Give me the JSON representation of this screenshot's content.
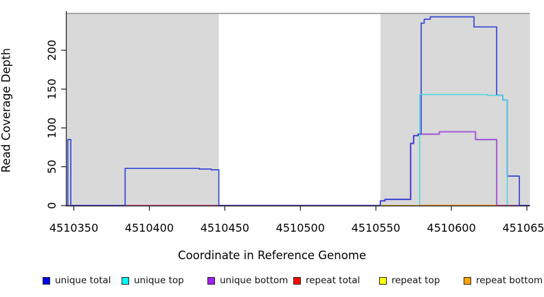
{
  "figure": {
    "background": "#ffffff",
    "text_color": "#000000"
  },
  "x_axis": {
    "label": "Coordinate in Reference Genome",
    "range": [
      4510345,
      4510652
    ],
    "ticks": [
      4510350,
      4510400,
      4510450,
      4510500,
      4510550,
      4510600,
      4510650
    ],
    "tick_labels": [
      "4510350",
      "4510400",
      "4510450",
      "4510500",
      "4510550",
      "4510600",
      "4510650"
    ]
  },
  "y_axis": {
    "label": "Read Coverage Depth",
    "range": [
      0,
      247
    ],
    "ticks": [
      0,
      50,
      100,
      150,
      200
    ],
    "tick_labels": [
      "0",
      "50",
      "100",
      "150",
      "200"
    ]
  },
  "repeat_regions": {
    "color": "#d9d9d9",
    "intervals": [
      [
        4510345,
        4510446
      ],
      [
        4510553,
        4510652
      ]
    ]
  },
  "frame": {
    "top_border_color": "#8e8e8e",
    "axis_color": "#1a1a1a"
  },
  "chart_data": {
    "type": "line-step",
    "xlabel": "Coordinate in Reference Genome",
    "ylabel": "Read Coverage Depth",
    "xlim": [
      4510345,
      4510652
    ],
    "ylim": [
      0,
      247
    ],
    "grid": false,
    "legend_position": "bottom",
    "series": [
      {
        "name": "unique bottom",
        "color": "#a961d6",
        "width": 2.2,
        "segments": [
          [
            [
              4510345,
              0
            ],
            [
              4510553,
              6
            ],
            [
              4510556,
              8
            ],
            [
              4510573,
              80
            ],
            [
              4510575,
              90
            ],
            [
              4510578,
              92
            ],
            [
              4510592,
              95
            ],
            [
              4510616,
              85
            ],
            [
              4510630,
              0
            ],
            [
              4510652,
              0
            ]
          ]
        ]
      },
      {
        "name": "unique total",
        "color": "#3546d4",
        "width": 1.7,
        "segments": [
          [
            [
              4510345,
              0
            ],
            [
              4510346,
              85
            ],
            [
              4510348,
              0
            ],
            [
              4510384,
              48
            ],
            [
              4510433,
              47
            ],
            [
              4510441,
              46
            ],
            [
              4510446,
              0
            ],
            [
              4510553,
              6
            ],
            [
              4510556,
              8
            ],
            [
              4510573,
              80
            ],
            [
              4510575,
              90
            ],
            [
              4510578,
              92
            ],
            [
              4510580,
              235
            ],
            [
              4510582,
              240
            ],
            [
              4510586,
              243
            ],
            [
              4510615,
              230
            ],
            [
              4510630,
              142
            ],
            [
              4510634,
              136
            ],
            [
              4510637,
              38
            ],
            [
              4510645,
              0
            ],
            [
              4510652,
              0
            ]
          ]
        ]
      },
      {
        "name": "unique top",
        "color": "#45d6e6",
        "width": 1.5,
        "segments": [
          [
            [
              4510553,
              0
            ],
            [
              4510579,
              143
            ],
            [
              4510624,
              142
            ],
            [
              4510634,
              136
            ],
            [
              4510637,
              0
            ],
            [
              4510638,
              0
            ]
          ]
        ]
      },
      {
        "name": "repeat total",
        "color": "#ec4f62",
        "width": 1.5,
        "segments": [
          [
            [
              4510384,
              0
            ],
            [
              4510446,
              0
            ]
          ],
          [
            [
              4510553,
              0
            ],
            [
              4510641,
              0
            ]
          ]
        ]
      },
      {
        "name": "repeat top",
        "color": "rgba(225,228,0,0.62)",
        "width": 2.0,
        "segments": [
          [
            [
              4510553,
              0
            ],
            [
              4510579,
              0
            ]
          ]
        ]
      },
      {
        "name": "repeat bottom",
        "color": "#ff9119",
        "width": 2.2,
        "segments": [
          [
            [
              4510579,
              0
            ],
            [
              4510630,
              0
            ]
          ]
        ]
      }
    ]
  },
  "legend": {
    "items": [
      {
        "label": "unique total",
        "color": "#0000ee"
      },
      {
        "label": "unique top",
        "color": "#00ffff"
      },
      {
        "label": "unique bottom",
        "color": "#a020f0"
      },
      {
        "label": "repeat total",
        "color": "#ff0000"
      },
      {
        "label": "repeat top",
        "color": "#ffff00"
      },
      {
        "label": "repeat bottom",
        "color": "#ffa500"
      }
    ]
  }
}
